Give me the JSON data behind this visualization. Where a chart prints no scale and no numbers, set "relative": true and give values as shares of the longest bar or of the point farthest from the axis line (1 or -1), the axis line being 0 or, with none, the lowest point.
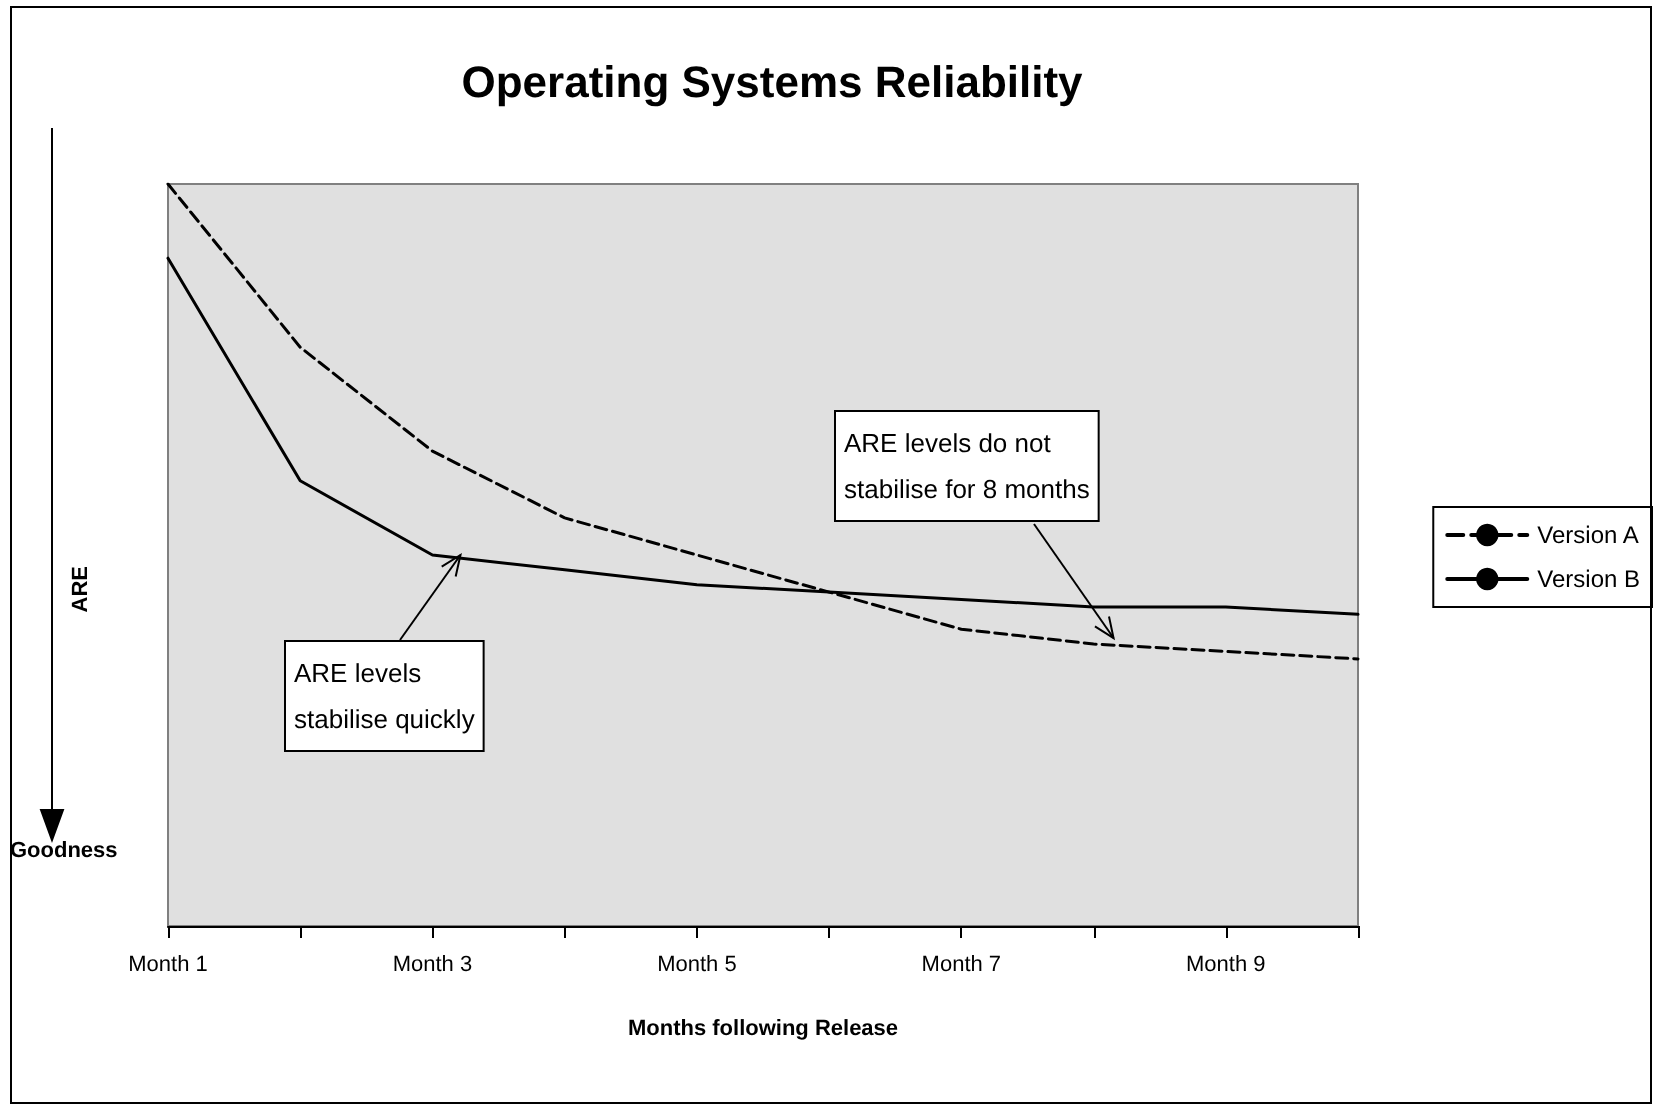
{
  "chart_data": {
    "type": "line",
    "title": "Operating Systems Reliability",
    "xlabel": "Months following Release",
    "ylabel": "ARE",
    "categories": [
      "Month 1",
      null,
      "Month 3",
      null,
      "Month 5",
      null,
      "Month 7",
      null,
      "Month 9",
      null
    ],
    "relative": true,
    "series": [
      {
        "name": "Version A",
        "color": "#000000",
        "line_style": "dashed",
        "values": [
          1.0,
          0.78,
          0.64,
          0.55,
          0.5,
          0.45,
          0.4,
          0.38,
          0.37,
          0.36
        ]
      },
      {
        "name": "Version B",
        "color": "#000000",
        "line_style": "solid",
        "values": [
          0.9,
          0.6,
          0.5,
          0.48,
          0.46,
          0.45,
          0.44,
          0.43,
          0.43,
          0.42
        ]
      }
    ],
    "annotations": [
      "ARE levels\nstabilise quickly",
      "ARE levels do not\nstabilise for 8 months",
      "Goodness"
    ],
    "marker": "none",
    "grid": false,
    "legend": "right"
  }
}
